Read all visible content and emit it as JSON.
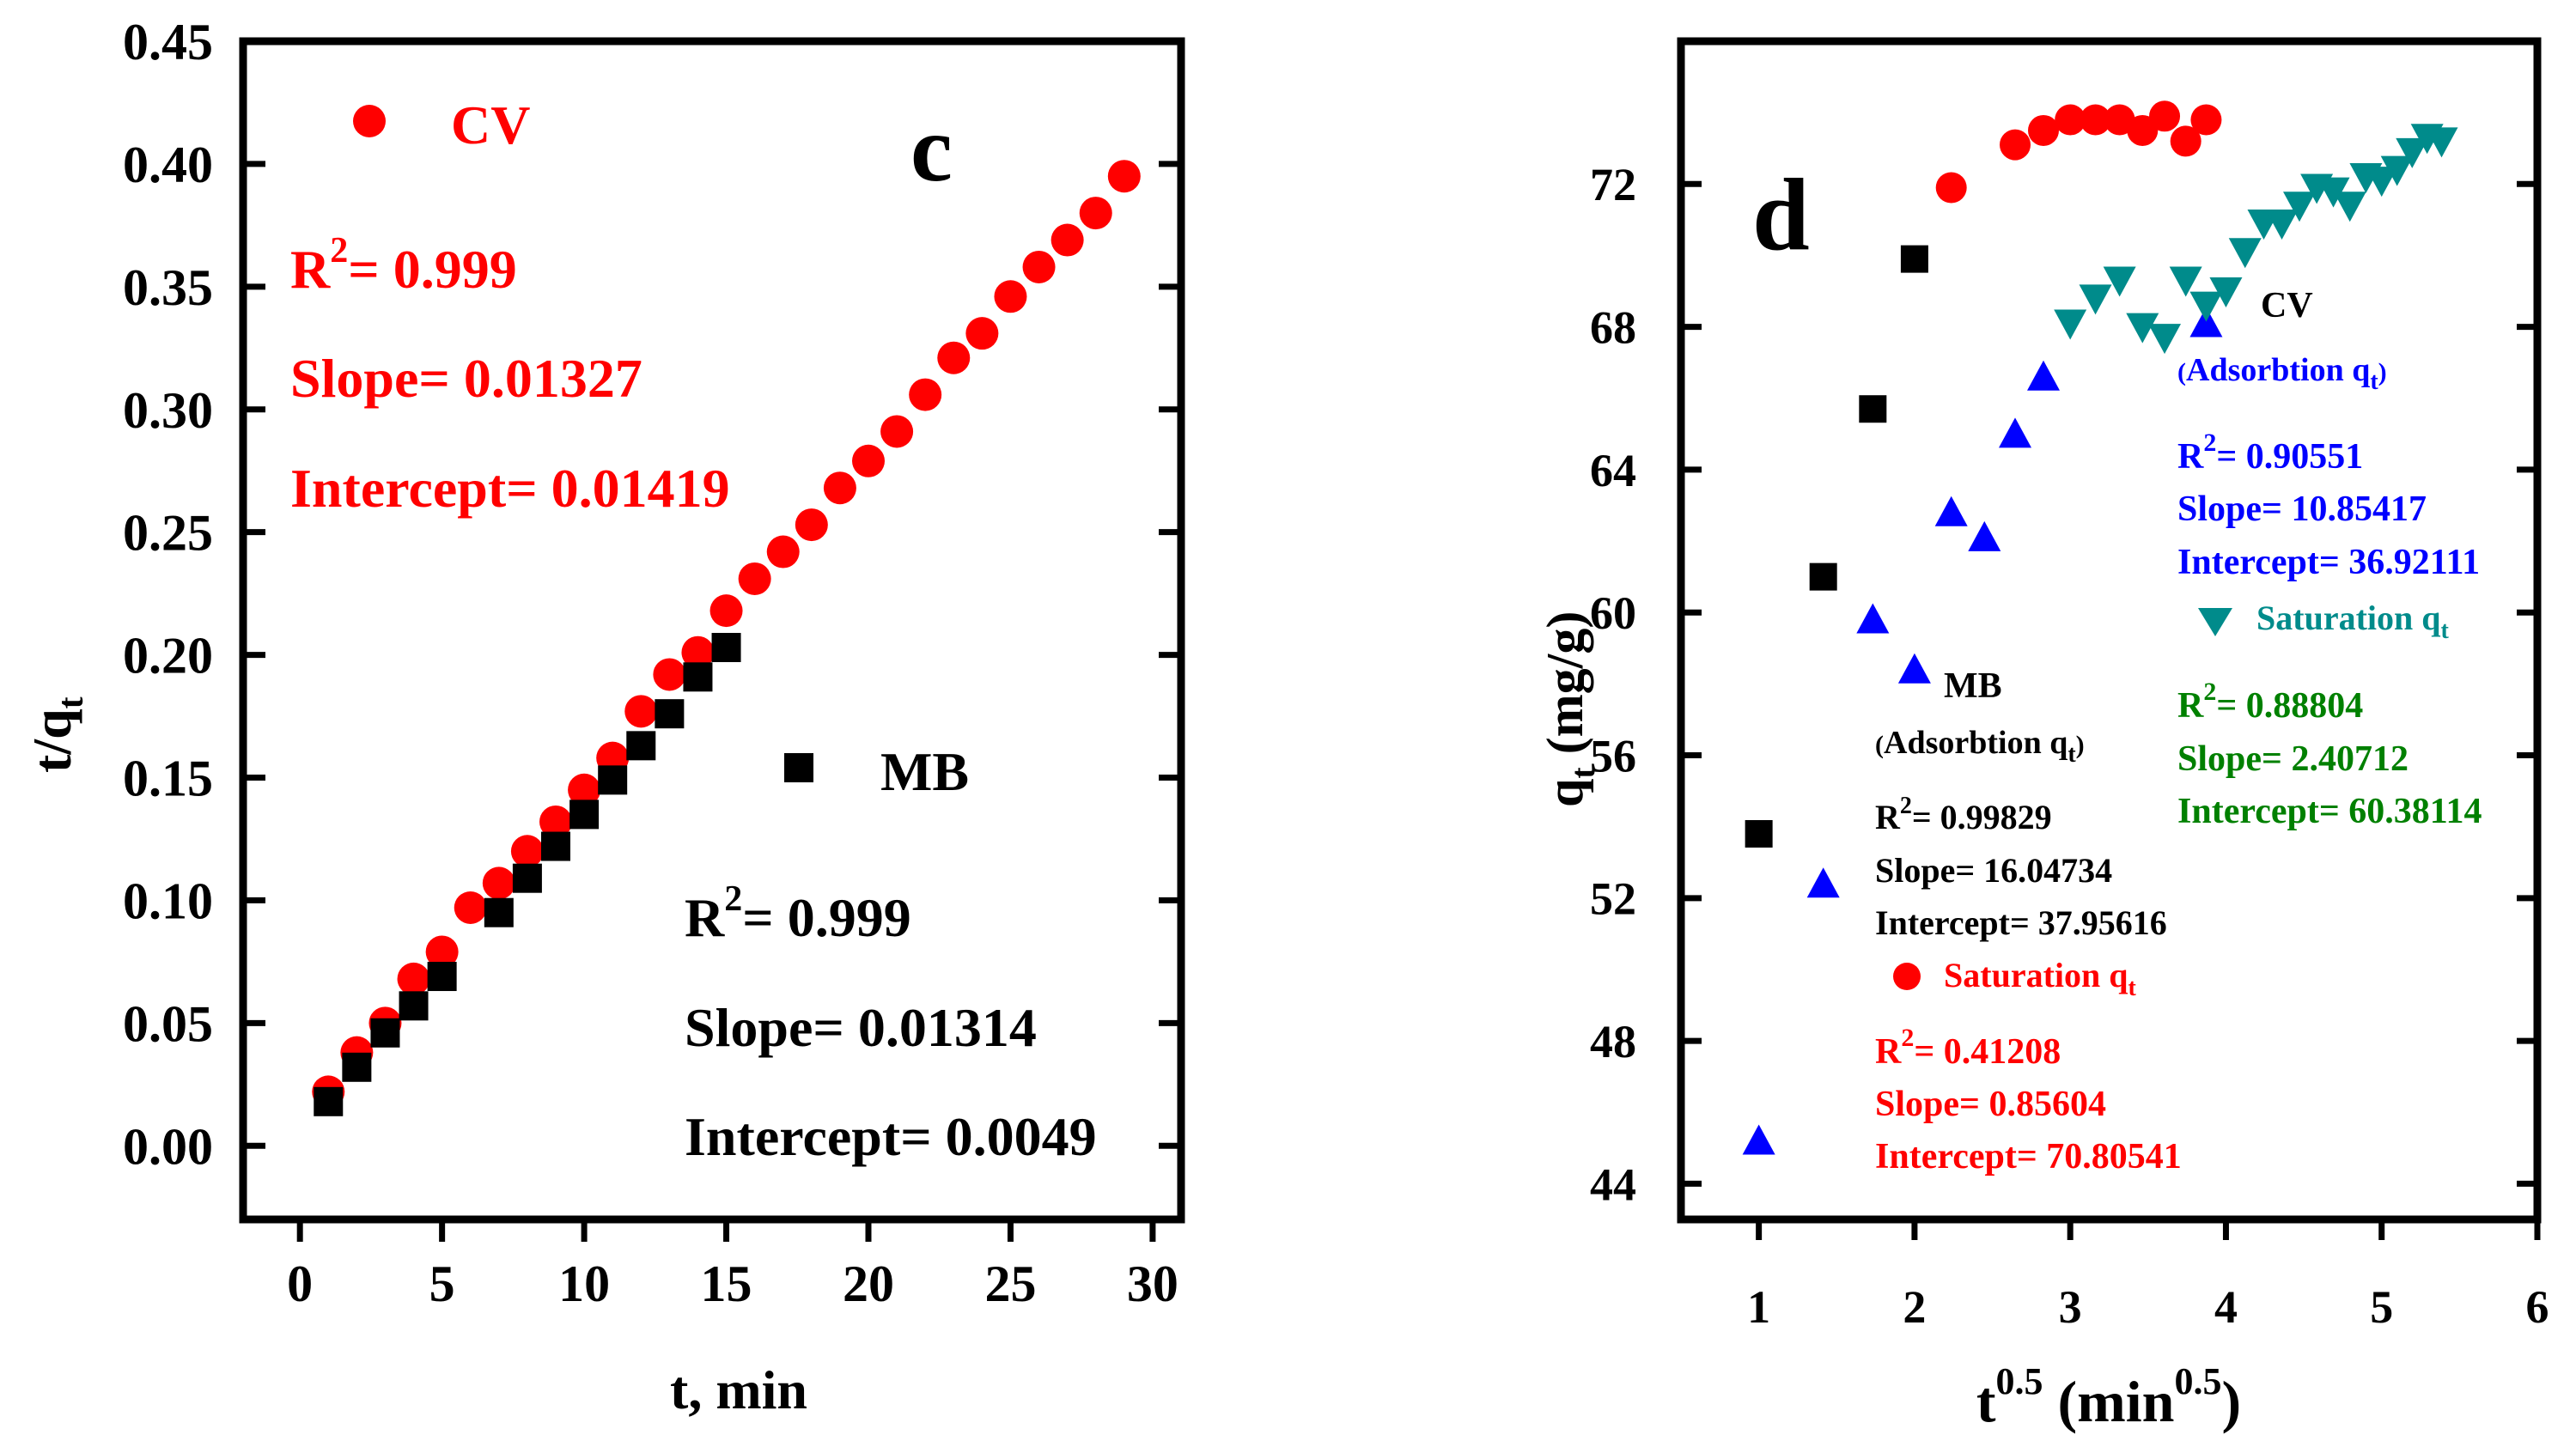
{
  "chart_data": [
    {
      "panel": "c",
      "type": "scatter",
      "panel_label": "c",
      "xlabel": "t, min",
      "ylabel": "t/q",
      "ylabel_sub": "t",
      "xlim": [
        -2,
        31
      ],
      "ylim": [
        -0.03,
        0.45
      ],
      "xticks": [
        0,
        5,
        10,
        15,
        20,
        25,
        30
      ],
      "xtick_labels": [
        "0",
        "5",
        "10",
        "15",
        "20",
        "25",
        "30"
      ],
      "yticks": [
        0.0,
        0.05,
        0.1,
        0.15,
        0.2,
        0.25,
        0.3,
        0.35,
        0.4,
        0.45
      ],
      "ytick_labels": [
        "0.00",
        "0.05",
        "0.10",
        "0.15",
        "0.20",
        "0.25",
        "0.30",
        "0.35",
        "0.40",
        "0.45"
      ],
      "series": [
        {
          "name": "CV",
          "marker": "circle",
          "color": "#ff0000",
          "x": [
            1,
            2,
            3,
            4,
            5,
            6,
            7,
            8,
            9,
            10,
            11,
            12,
            13,
            14,
            15,
            16,
            17,
            18,
            19,
            20,
            21,
            22,
            23,
            24,
            25,
            26,
            27,
            28,
            29
          ],
          "y": [
            0.022,
            0.038,
            0.05,
            0.068,
            0.079,
            0.097,
            0.107,
            0.12,
            0.132,
            0.145,
            0.158,
            0.177,
            0.192,
            0.201,
            0.218,
            0.231,
            0.242,
            0.253,
            0.268,
            0.279,
            0.291,
            0.306,
            0.321,
            0.331,
            0.346,
            0.358,
            0.369,
            0.38,
            0.395
          ]
        },
        {
          "name": "MB",
          "marker": "square",
          "color": "#000000",
          "x": [
            1,
            2,
            3,
            4,
            5,
            7,
            8,
            9,
            10,
            11,
            12,
            13,
            14,
            15
          ],
          "y": [
            0.018,
            0.032,
            0.046,
            0.057,
            0.069,
            0.095,
            0.109,
            0.122,
            0.135,
            0.149,
            0.163,
            0.176,
            0.191,
            0.203
          ]
        }
      ],
      "annotations": {
        "cv_legend": "CV",
        "cv_r2_label": "R",
        "cv_r2_sup": "2",
        "cv_r2_value": "= 0.999",
        "cv_slope": "Slope= 0.01327",
        "cv_intercept": "Intercept= 0.01419",
        "mb_legend": "MB",
        "mb_r2_label": "R",
        "mb_r2_sup": "2",
        "mb_r2_value": "= 0.999",
        "mb_slope": "Slope= 0.01314",
        "mb_intercept": "Intercept= 0.0049"
      }
    },
    {
      "panel": "d",
      "type": "scatter",
      "panel_label": "d",
      "xlabel_base": "t",
      "xlabel_sup": "0.5",
      "xlabel_mid": " (min",
      "xlabel_sup2": "0.5",
      "xlabel_end": ")",
      "ylabel_base": "q",
      "ylabel_sub": "t",
      "ylabel_rest": " (mg/g)",
      "xlim": [
        0.5,
        6
      ],
      "ylim": [
        43,
        76
      ],
      "xticks": [
        1,
        2,
        3,
        4,
        5,
        6
      ],
      "xtick_labels": [
        "1",
        "2",
        "3",
        "4",
        "5",
        "6"
      ],
      "yticks": [
        44,
        48,
        52,
        56,
        60,
        64,
        68,
        72
      ],
      "ytick_labels": [
        "44",
        "48",
        "52",
        "56",
        "60",
        "64",
        "68",
        "72"
      ],
      "series": [
        {
          "name": "MB adsorption",
          "marker": "square",
          "color": "#000000",
          "x": [
            1.0,
            1.414,
            1.732,
            2.0
          ],
          "y": [
            53.8,
            61.0,
            65.7,
            69.9
          ]
        },
        {
          "name": "MB saturation",
          "marker": "circle",
          "color": "#ff0000",
          "x": [
            2.236,
            2.646,
            2.828,
            3.0,
            3.162,
            3.317,
            3.464,
            3.606,
            3.742,
            3.873
          ],
          "y": [
            71.9,
            73.1,
            73.5,
            73.8,
            73.8,
            73.8,
            73.5,
            73.9,
            73.2,
            73.8
          ]
        },
        {
          "name": "CV adsorption",
          "marker": "triangle-up",
          "color": "#0000ff",
          "x": [
            1.0,
            1.414,
            1.732,
            2.0,
            2.236,
            2.449,
            2.646,
            2.828,
            3.873
          ],
          "y": [
            45.2,
            52.4,
            59.8,
            58.4,
            62.8,
            62.1,
            65.0,
            66.6,
            68.1
          ]
        },
        {
          "name": "CV saturation",
          "marker": "triangle-down",
          "color": "#008b8b",
          "x": [
            3.0,
            3.162,
            3.317,
            3.464,
            3.606,
            3.742,
            3.873,
            4.0,
            4.123,
            4.243,
            4.359,
            4.472,
            4.583,
            4.69,
            4.796,
            4.899,
            5.0,
            5.099,
            5.196,
            5.292,
            5.385
          ],
          "y": [
            68.1,
            68.8,
            69.3,
            68.0,
            67.7,
            69.3,
            68.6,
            69.0,
            70.1,
            70.9,
            70.9,
            71.4,
            71.9,
            71.8,
            71.4,
            72.2,
            72.1,
            72.4,
            72.9,
            73.3,
            73.2
          ]
        }
      ],
      "annotations": {
        "cv_title": "CV",
        "cv_ads_open": "(",
        "cv_ads_text": "Adsorbtion q",
        "cv_ads_sub": "t",
        "cv_ads_close": ")",
        "cv_ads_r2_label": "R",
        "cv_ads_r2_sup": "2",
        "cv_ads_r2_value": "= 0.90551",
        "cv_ads_slope": "Slope= 10.85417",
        "cv_ads_intercept": "Intercept= 36.92111",
        "cv_sat_label": "Saturation q",
        "cv_sat_sub": "t",
        "cv_sat_r2_label": "R",
        "cv_sat_r2_sup": "2",
        "cv_sat_r2_value": "= 0.88804",
        "cv_sat_slope": "Slope= 2.40712",
        "cv_sat_intercept": "Intercept= 60.38114",
        "mb_title": "MB",
        "mb_ads_open": "(",
        "mb_ads_text": "Adsorbtion q",
        "mb_ads_sub": "t",
        "mb_ads_close": ")",
        "mb_ads_r2_label": "R",
        "mb_ads_r2_sup": "2",
        "mb_ads_r2_value": "= 0.99829",
        "mb_ads_slope": "Slope= 16.04734",
        "mb_ads_intercept": "Intercept= 37.95616",
        "mb_sat_label": "Saturation q",
        "mb_sat_sub": "t",
        "mb_sat_r2_label": "R",
        "mb_sat_r2_sup": "2",
        "mb_sat_r2_value": "= 0.41208",
        "mb_sat_slope": "Slope= 0.85604",
        "mb_sat_intercept": "Intercept= 70.80541"
      }
    }
  ]
}
